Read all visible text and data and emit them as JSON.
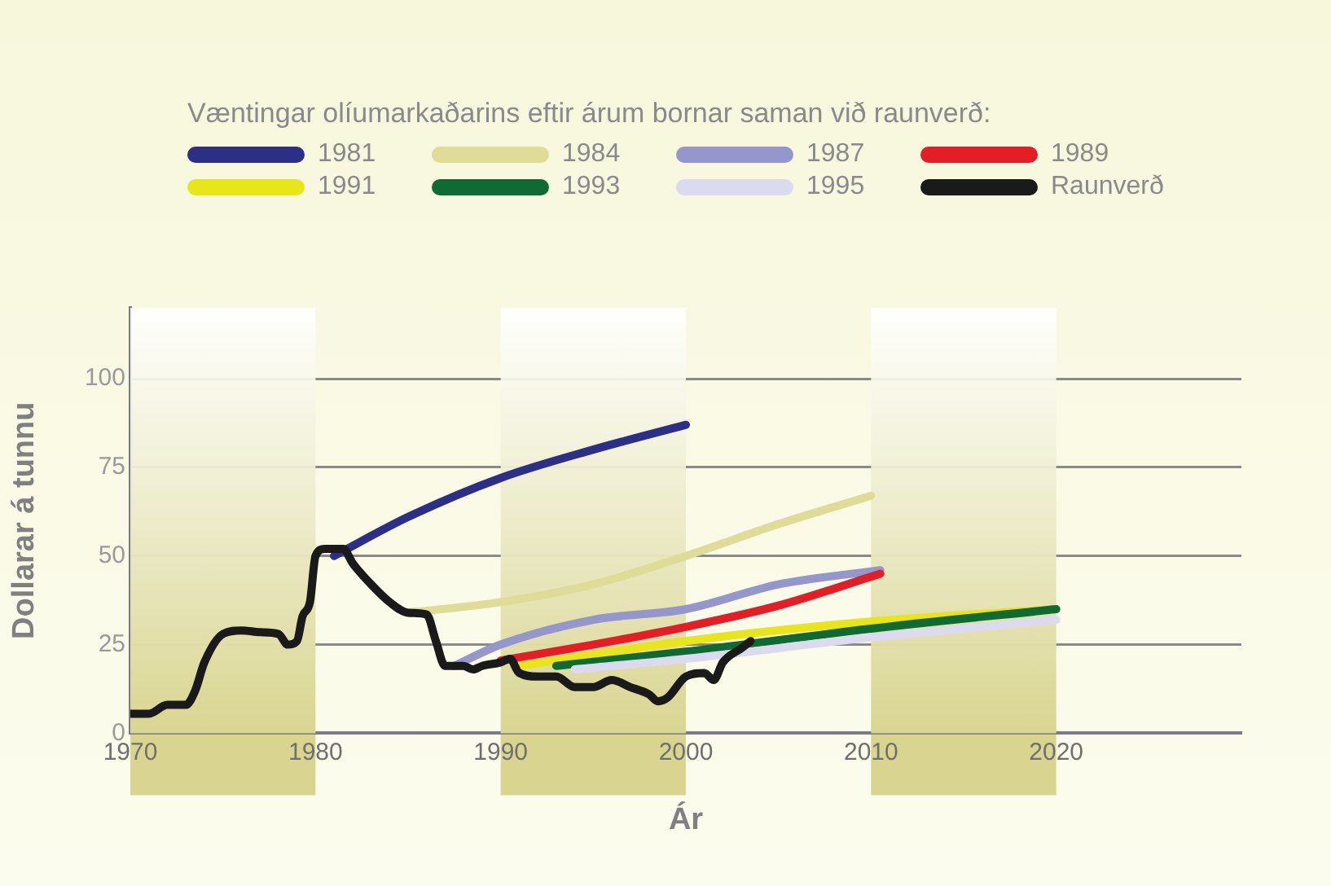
{
  "chart_data": {
    "type": "line",
    "legend_title": "Væntingar olíumarkaðarins eftir árum bornar saman við raunverð:",
    "xlabel": "Ár",
    "ylabel": "Dollarar á tunnu",
    "xlim": [
      1970,
      2030
    ],
    "xticks": [
      1970,
      1980,
      1990,
      2000,
      2010,
      2020
    ],
    "ylim": [
      0,
      120
    ],
    "yticks": [
      0,
      25,
      50,
      75,
      100
    ],
    "grid": "y",
    "legend": "top",
    "marker": "none",
    "line_style": "solid",
    "bands": [
      {
        "axis": "x",
        "from": 1970,
        "to": 1980,
        "color": "#d9d591"
      },
      {
        "axis": "x",
        "from": 1990,
        "to": 2000,
        "color": "#d9d591"
      },
      {
        "axis": "x",
        "from": 2010,
        "to": 2020,
        "color": "#d9d591"
      }
    ],
    "series": [
      {
        "name": "1981",
        "color": "#2b2f86",
        "x": [
          1981,
          1985,
          1990,
          1995,
          2000
        ],
        "values": [
          50,
          61,
          72,
          80,
          87
        ]
      },
      {
        "name": "1984",
        "color": "#dedc96",
        "x": [
          1985,
          1990,
          1995,
          2000,
          2005,
          2010
        ],
        "values": [
          34,
          37,
          42,
          50,
          59,
          67
        ]
      },
      {
        "name": "1987",
        "color": "#9597cc",
        "x": [
          1987.5,
          1990,
          1995,
          2000,
          2005,
          2010.5
        ],
        "values": [
          19,
          25,
          32,
          35,
          42,
          46
        ]
      },
      {
        "name": "1989",
        "color": "#e41e26",
        "x": [
          1990,
          1995,
          2000,
          2005,
          2010.5
        ],
        "values": [
          20.5,
          25,
          30,
          36,
          45
        ]
      },
      {
        "name": "1991",
        "color": "#e8e51a",
        "x": [
          1991,
          2000,
          2010,
          2020
        ],
        "values": [
          19,
          26,
          31.5,
          35
        ]
      },
      {
        "name": "1993",
        "color": "#0f6a34",
        "x": [
          1993,
          2000,
          2010,
          2020
        ],
        "values": [
          19,
          23,
          29.5,
          35
        ]
      },
      {
        "name": "1995",
        "color": "#dcdaee",
        "x": [
          1994,
          2000,
          2010,
          2020
        ],
        "values": [
          18,
          21,
          27,
          32
        ]
      },
      {
        "name": "Raunverð",
        "color": "#1a1a1a",
        "x": [
          1970,
          1971,
          1972,
          1973,
          1973.5,
          1974,
          1975,
          1976,
          1977,
          1978,
          1978.5,
          1979,
          1979.3,
          1979.7,
          1980,
          1980.5,
          1981,
          1981.5,
          1982,
          1983,
          1984,
          1985,
          1986,
          1986.5,
          1987,
          1988,
          1988.5,
          1989,
          1990,
          1990.5,
          1991,
          1992,
          1993,
          1994,
          1995,
          1996,
          1997,
          1998,
          1998.5,
          1999,
          2000,
          2001,
          2001.5,
          2002,
          2003,
          2003.5
        ],
        "values": [
          5.5,
          5.5,
          8,
          8,
          12,
          20,
          28,
          29,
          28.5,
          28,
          25,
          26,
          33,
          37,
          50,
          52,
          52,
          52,
          48,
          42,
          37,
          34,
          33.5,
          26,
          19,
          19,
          18,
          19,
          20,
          21,
          17,
          16,
          16,
          13,
          13,
          15,
          13,
          11,
          9,
          10,
          16,
          17,
          15,
          20,
          24,
          26
        ]
      }
    ]
  }
}
